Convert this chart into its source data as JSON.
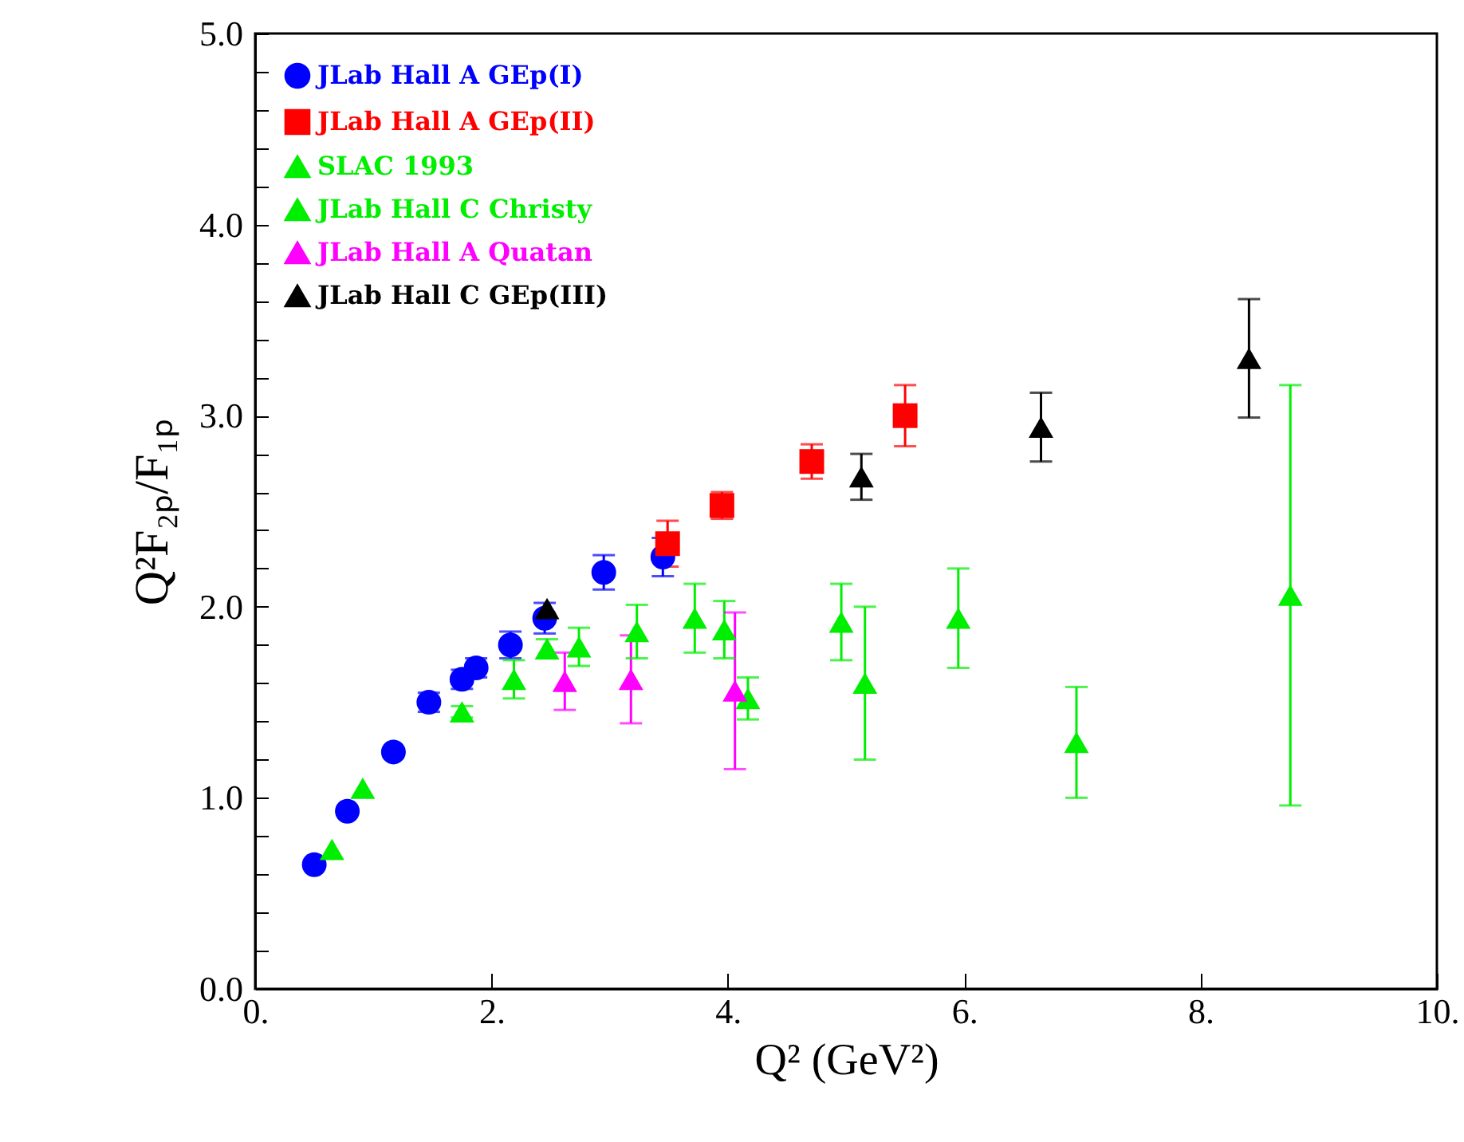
{
  "chart_data": {
    "type": "scatter",
    "xlabel": "Q² (GeV²)",
    "ylabel": "Q²F₂ₚ/F₁ₚ",
    "xlim": [
      0,
      10
    ],
    "ylim": [
      0,
      5
    ],
    "xticks": [
      {
        "value": 0,
        "label": "0."
      },
      {
        "value": 2,
        "label": "2."
      },
      {
        "value": 4,
        "label": "4."
      },
      {
        "value": 6,
        "label": "6."
      },
      {
        "value": 8,
        "label": "8."
      },
      {
        "value": 10,
        "label": "10."
      }
    ],
    "yticks": [
      {
        "value": 0,
        "label": "0.0"
      },
      {
        "value": 0.2,
        "label": null
      },
      {
        "value": 0.4,
        "label": null
      },
      {
        "value": 0.6,
        "label": null
      },
      {
        "value": 0.8,
        "label": null
      },
      {
        "value": 1,
        "label": "1.0"
      },
      {
        "value": 1.2,
        "label": null
      },
      {
        "value": 1.4,
        "label": null
      },
      {
        "value": 1.6,
        "label": null
      },
      {
        "value": 1.8,
        "label": null
      },
      {
        "value": 2,
        "label": "2.0"
      },
      {
        "value": 2.2,
        "label": null
      },
      {
        "value": 2.4,
        "label": null
      },
      {
        "value": 2.6,
        "label": null
      },
      {
        "value": 2.8,
        "label": null
      },
      {
        "value": 3,
        "label": "3.0"
      },
      {
        "value": 3.2,
        "label": null
      },
      {
        "value": 3.4,
        "label": null
      },
      {
        "value": 3.6,
        "label": null
      },
      {
        "value": 3.8,
        "label": null
      },
      {
        "value": 4,
        "label": "4.0"
      },
      {
        "value": 4.2,
        "label": null
      },
      {
        "value": 4.4,
        "label": null
      },
      {
        "value": 4.6,
        "label": null
      },
      {
        "value": 4.8,
        "label": null
      },
      {
        "value": 5,
        "label": "5.0"
      }
    ],
    "grid": false,
    "legend": "top left",
    "series": [
      {
        "name": "JLab Hall A GEp(I)",
        "color": "#0000ff",
        "marker": "circle",
        "x": [
          0.5,
          0.78,
          1.17,
          1.47,
          1.75,
          1.87,
          2.16,
          2.45,
          2.95,
          3.45
        ],
        "values": [
          0.65,
          0.93,
          1.24,
          1.5,
          1.62,
          1.68,
          1.8,
          1.94,
          2.18,
          2.26
        ],
        "errors": [
          null,
          null,
          null,
          0.05,
          0.05,
          0.05,
          0.07,
          0.08,
          0.09,
          0.1
        ]
      },
      {
        "name": "JLab Hall A GEp(II)",
        "color": "#ff0000",
        "marker": "square",
        "x": [
          3.49,
          3.95,
          4.71,
          5.5
        ],
        "values": [
          2.33,
          2.53,
          2.76,
          3.0
        ],
        "errors": [
          0.12,
          0.07,
          0.09,
          0.16
        ]
      },
      {
        "name": "SLAC 1993",
        "color": "#00ee00",
        "marker": "triangle",
        "x": [
          1.75,
          2.47,
          3.23,
          3.97,
          4.96,
          5.95,
          6.95,
          8.76
        ],
        "values": [
          1.45,
          1.78,
          1.87,
          1.88,
          1.92,
          1.94,
          1.29,
          2.06
        ],
        "errors": [
          0.03,
          0.05,
          0.14,
          0.15,
          0.2,
          0.26,
          0.29,
          1.1
        ]
      },
      {
        "name": "JLab Hall C Christy",
        "color": "#00ee00",
        "marker": "triangle",
        "x": [
          0.65,
          0.91,
          2.19,
          2.74,
          3.72,
          4.17,
          5.16
        ],
        "values": [
          0.73,
          1.05,
          1.62,
          1.79,
          1.94,
          1.52,
          1.6
        ],
        "errors": [
          null,
          null,
          0.1,
          0.1,
          0.18,
          0.11,
          0.4
        ]
      },
      {
        "name": "JLab Hall A Quatan",
        "color": "#ff00ff",
        "marker": "triangle",
        "x": [
          2.62,
          3.18,
          4.06
        ],
        "values": [
          1.61,
          1.62,
          1.56
        ],
        "errors": [
          0.15,
          0.23,
          0.41
        ]
      },
      {
        "name": "JLab Hall C GEp(III)",
        "color": "#000000",
        "marker": "triangle",
        "x": [
          2.47,
          5.13,
          6.65,
          8.41
        ],
        "values": [
          1.99,
          2.68,
          2.94,
          3.3
        ],
        "errors": [
          null,
          0.12,
          0.18,
          0.31
        ]
      }
    ]
  }
}
